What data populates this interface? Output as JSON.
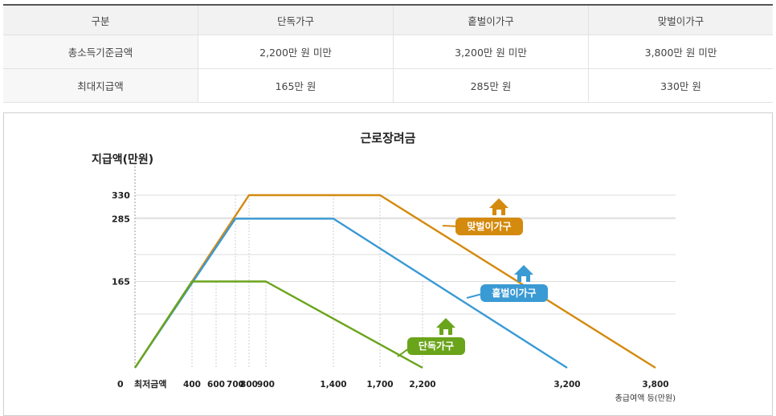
{
  "table": {
    "headers": [
      "구분",
      "단독가구",
      "홑벌이가구",
      "맞벌이가구"
    ],
    "rows": [
      [
        "총소득기준금액",
        "2,200만 원 미만",
        "3,200만 원 미만",
        "3,800만 원 미만"
      ],
      [
        "최대지급액",
        "165만 원",
        "285만 원",
        "330만 원"
      ]
    ]
  },
  "chart_data": {
    "type": "line",
    "title": "근로장려금",
    "ylabel": "지급액(만원)",
    "xlabel": "총급여액 등(만원)",
    "x_origin_label": "최저금액",
    "y_ticks": [
      {
        "value": 0,
        "label": "0"
      },
      {
        "value": 165,
        "label": "165"
      },
      {
        "value": 285,
        "label": "285"
      },
      {
        "value": 330,
        "label": "330"
      }
    ],
    "x_ticks": [
      {
        "value": 400,
        "label": "400"
      },
      {
        "value": 600,
        "label": "600"
      },
      {
        "value": 700,
        "label": "700"
      },
      {
        "value": 800,
        "label": "800"
      },
      {
        "value": 900,
        "label": "900"
      },
      {
        "value": 1400,
        "label": "1,400"
      },
      {
        "value": 1700,
        "label": "1,700"
      },
      {
        "value": 2200,
        "label": "2,200"
      },
      {
        "value": 3200,
        "label": "3,200"
      },
      {
        "value": 3800,
        "label": "3,800"
      }
    ],
    "series": [
      {
        "name": "맞벌이가구",
        "color": "#d48a0e",
        "points": [
          [
            0,
            0
          ],
          [
            800,
            330
          ],
          [
            1700,
            330
          ],
          [
            3800,
            0
          ]
        ]
      },
      {
        "name": "홑벌이가구",
        "color": "#3a9ad4",
        "points": [
          [
            0,
            0
          ],
          [
            700,
            285
          ],
          [
            1400,
            285
          ],
          [
            3200,
            0
          ]
        ]
      },
      {
        "name": "단독가구",
        "color": "#6aa41b",
        "points": [
          [
            0,
            0
          ],
          [
            400,
            165
          ],
          [
            900,
            165
          ],
          [
            2200,
            0
          ]
        ]
      }
    ],
    "legend_icon": "house-icon"
  }
}
